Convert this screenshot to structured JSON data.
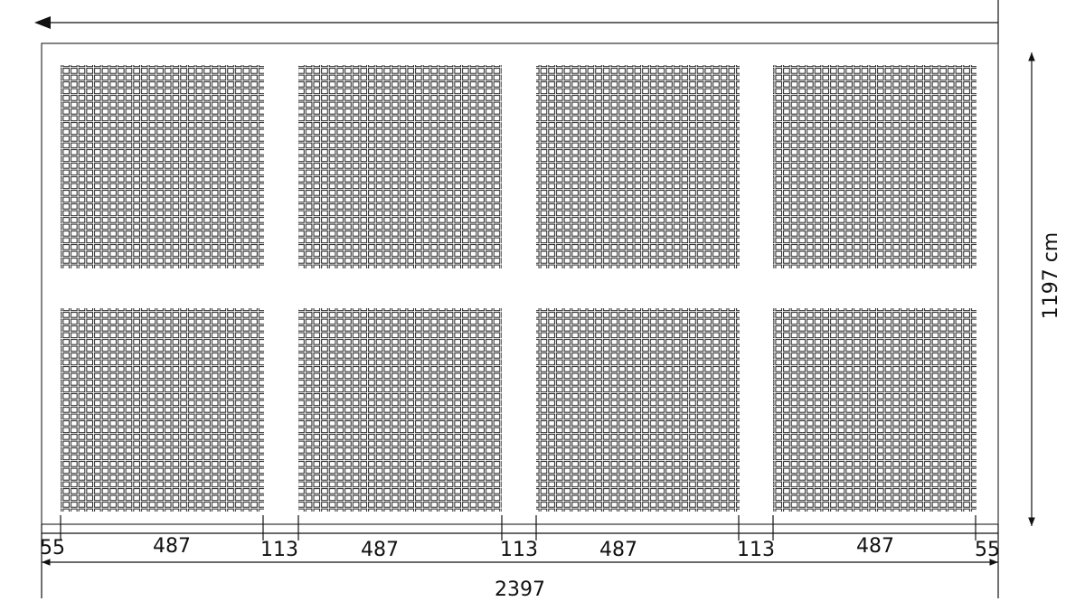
{
  "dimensions": {
    "segments": [
      55,
      487,
      113,
      487,
      113,
      487,
      113,
      487,
      55
    ],
    "total": 2397,
    "height": "1197 cm"
  }
}
